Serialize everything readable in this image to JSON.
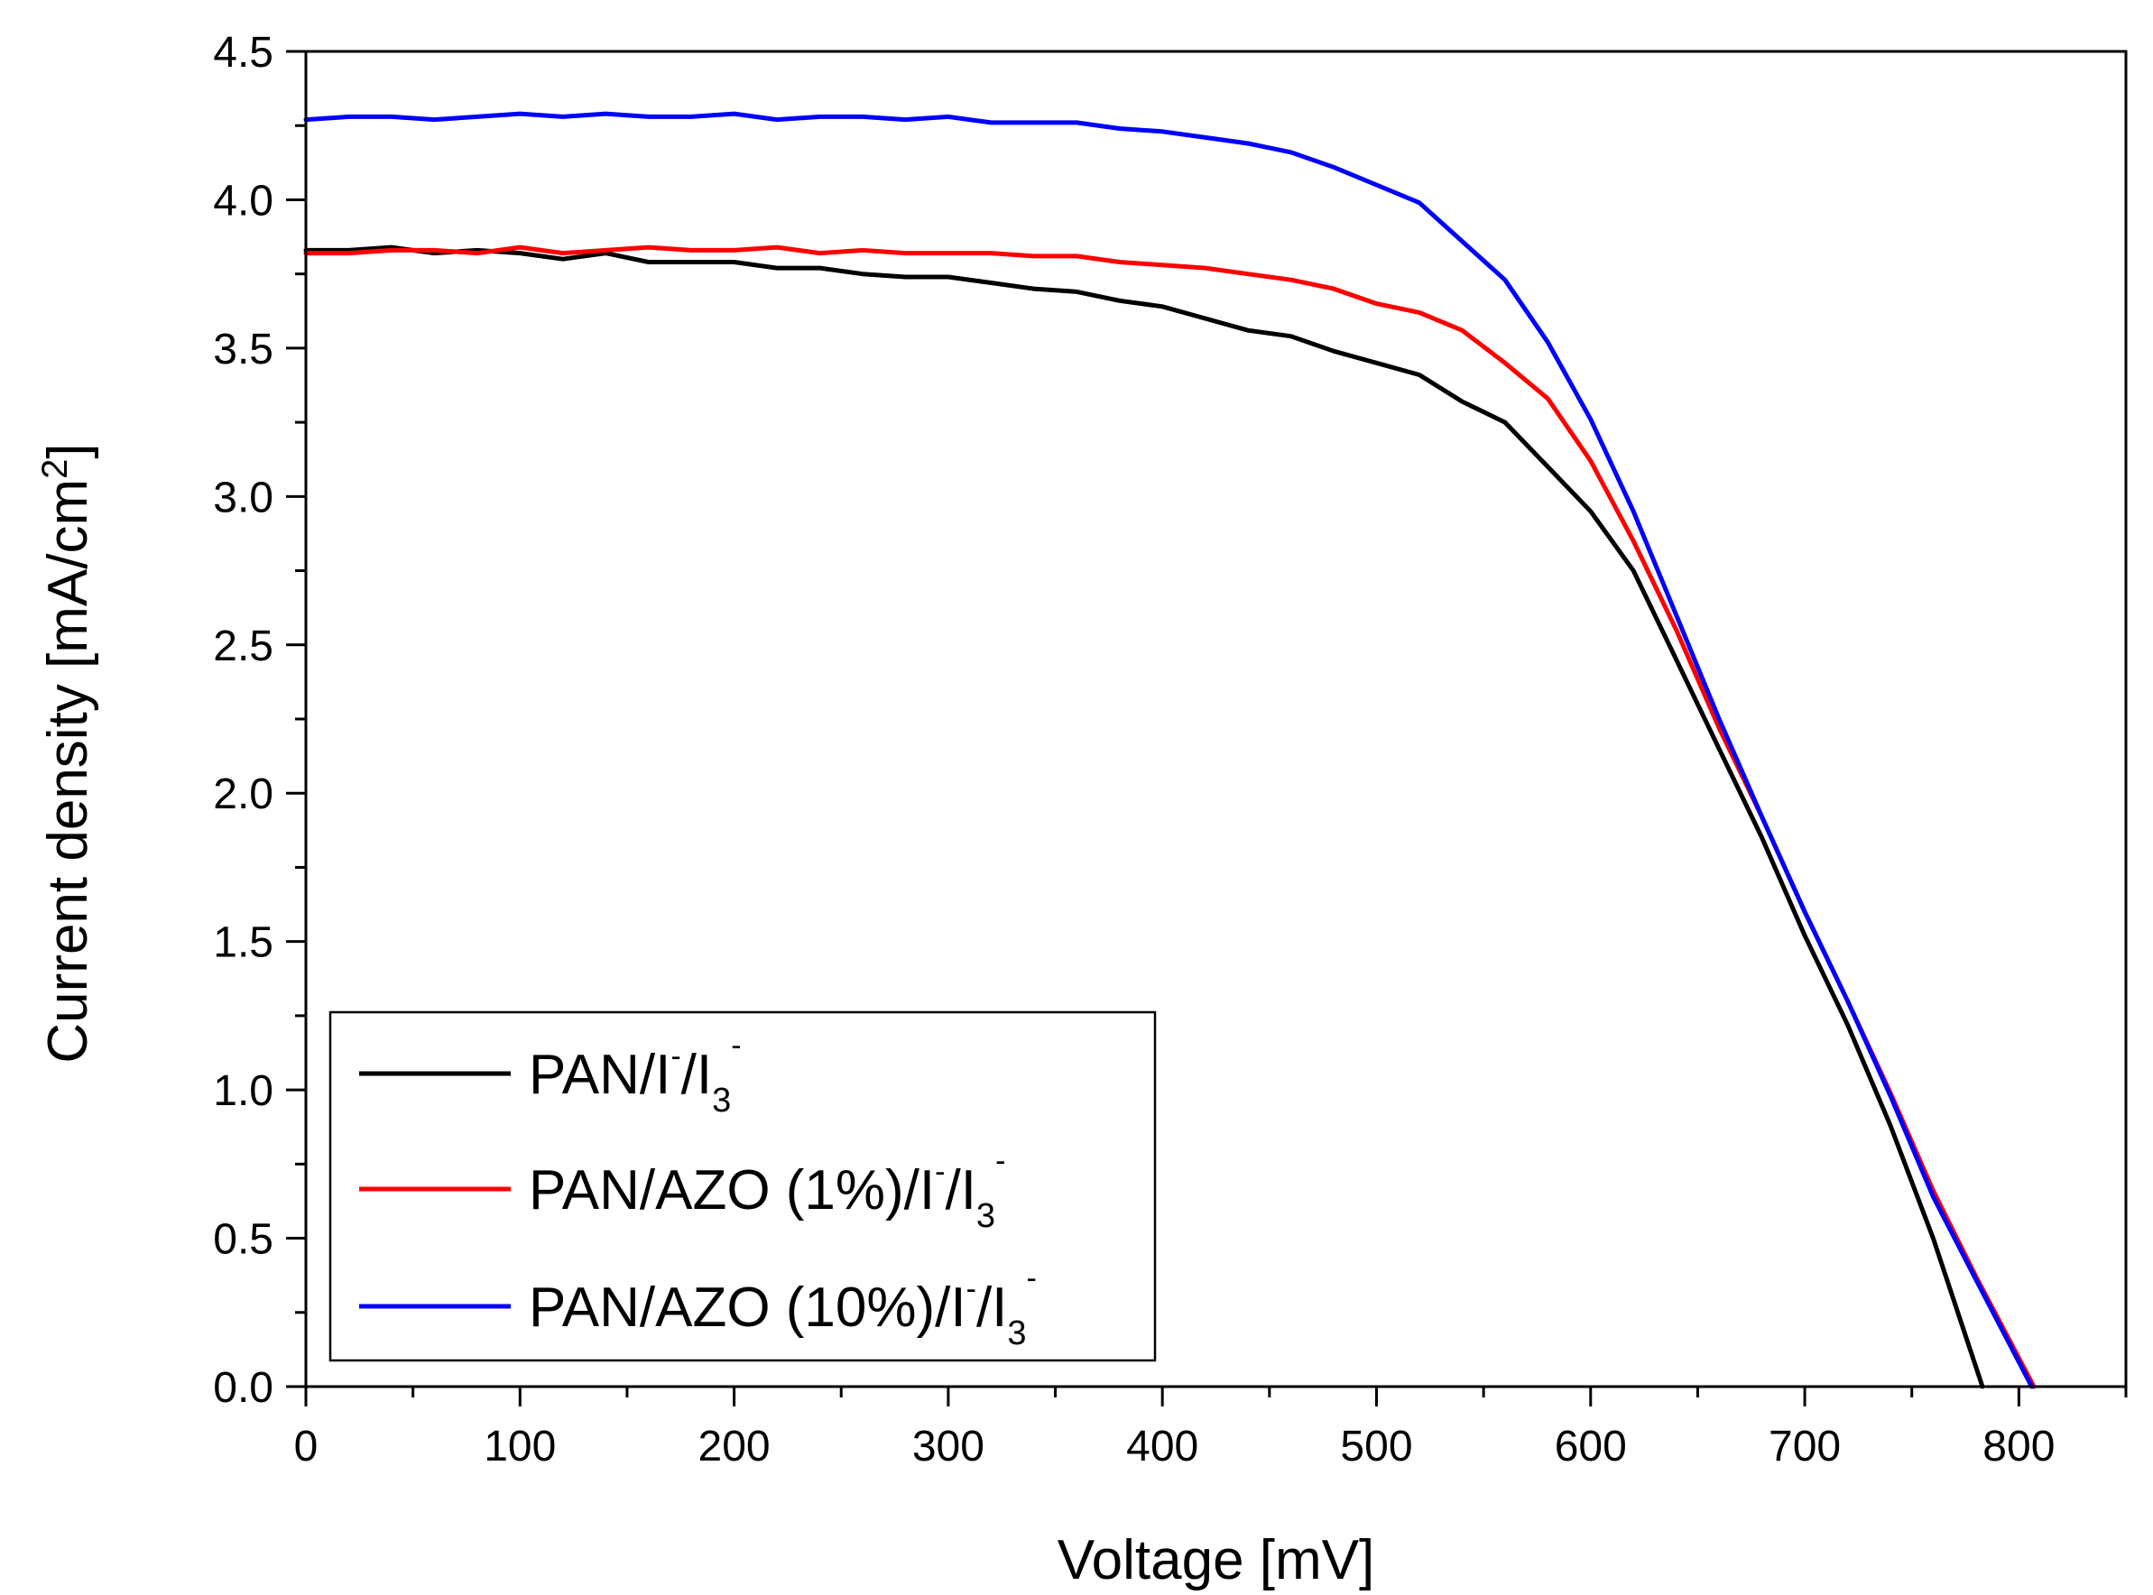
{
  "chart_data": {
    "type": "line",
    "xlabel": "Voltage [mV]",
    "ylabel": "Current density [mA/cm",
    "ylabel_sup": "2",
    "ylabel_tail": "]",
    "xlim": [
      0,
      850
    ],
    "ylim": [
      0,
      4.5
    ],
    "x_ticks": [
      0,
      100,
      200,
      300,
      400,
      500,
      600,
      700,
      800
    ],
    "x_tick_labels": [
      "0",
      "100",
      "200",
      "300",
      "400",
      "500",
      "600",
      "700",
      "800"
    ],
    "y_ticks": [
      0,
      0.5,
      1,
      1.5,
      2,
      2.5,
      3,
      3.5,
      4,
      4.5
    ],
    "y_tick_labels": [
      "0.0",
      "0.5",
      "1.0",
      "1.5",
      "2.0",
      "2.5",
      "3.0",
      "3.5",
      "4.0",
      "4.5"
    ],
    "grid": false,
    "legend_position": "bottom-left",
    "series": [
      {
        "name": "PAN/I⁻/I₃⁻",
        "legend": {
          "main": "PAN/I",
          "sup1": "-",
          "mid": "/I",
          "sub": "3",
          "sup2": "-"
        },
        "color": "#000000",
        "x": [
          0,
          20,
          40,
          60,
          80,
          100,
          120,
          140,
          160,
          180,
          200,
          220,
          240,
          260,
          280,
          300,
          320,
          340,
          360,
          380,
          400,
          420,
          440,
          460,
          480,
          500,
          520,
          540,
          560,
          580,
          600,
          620,
          640,
          660,
          680,
          700,
          720,
          740,
          760,
          783
        ],
        "y": [
          3.83,
          3.83,
          3.84,
          3.82,
          3.83,
          3.82,
          3.8,
          3.82,
          3.79,
          3.79,
          3.79,
          3.77,
          3.77,
          3.75,
          3.74,
          3.74,
          3.72,
          3.7,
          3.69,
          3.66,
          3.64,
          3.6,
          3.56,
          3.54,
          3.49,
          3.45,
          3.41,
          3.32,
          3.25,
          3.1,
          2.95,
          2.75,
          2.45,
          2.15,
          1.85,
          1.52,
          1.22,
          0.88,
          0.5,
          0.0
        ]
      },
      {
        "name": "PAN/AZO (1%)/I⁻/I₃⁻",
        "legend": {
          "main": "PAN/AZO (1%)/I",
          "sup1": "-",
          "mid": "/I",
          "sub": "3",
          "sup2": "-"
        },
        "color": "#ff0000",
        "x": [
          0,
          20,
          40,
          60,
          80,
          100,
          120,
          140,
          160,
          180,
          200,
          220,
          240,
          260,
          280,
          300,
          320,
          340,
          360,
          380,
          400,
          420,
          440,
          460,
          480,
          500,
          520,
          540,
          560,
          580,
          600,
          620,
          640,
          660,
          680,
          700,
          720,
          740,
          760,
          780,
          807
        ],
        "y": [
          3.82,
          3.82,
          3.83,
          3.83,
          3.82,
          3.84,
          3.82,
          3.83,
          3.84,
          3.83,
          3.83,
          3.84,
          3.82,
          3.83,
          3.82,
          3.82,
          3.82,
          3.81,
          3.81,
          3.79,
          3.78,
          3.77,
          3.75,
          3.73,
          3.7,
          3.65,
          3.62,
          3.56,
          3.45,
          3.33,
          3.12,
          2.85,
          2.55,
          2.22,
          1.92,
          1.6,
          1.3,
          0.99,
          0.66,
          0.37,
          0.0
        ]
      },
      {
        "name": "PAN/AZO (10%)/I⁻/I₃⁻",
        "legend": {
          "main": "PAN/AZO (10%)/I",
          "sup1": "-",
          "mid": "/I",
          "sub": "3",
          "sup2": "-"
        },
        "color": "#0000ff",
        "x": [
          0,
          20,
          40,
          60,
          80,
          100,
          120,
          140,
          160,
          180,
          200,
          220,
          240,
          260,
          280,
          300,
          320,
          340,
          360,
          380,
          400,
          420,
          440,
          460,
          480,
          500,
          520,
          540,
          560,
          580,
          600,
          620,
          640,
          660,
          680,
          700,
          720,
          740,
          760,
          780,
          806
        ],
        "y": [
          4.27,
          4.28,
          4.28,
          4.27,
          4.28,
          4.29,
          4.28,
          4.29,
          4.28,
          4.28,
          4.29,
          4.27,
          4.28,
          4.28,
          4.27,
          4.28,
          4.26,
          4.26,
          4.26,
          4.24,
          4.23,
          4.21,
          4.19,
          4.16,
          4.11,
          4.05,
          3.99,
          3.86,
          3.73,
          3.52,
          3.26,
          2.95,
          2.6,
          2.25,
          1.92,
          1.6,
          1.3,
          0.98,
          0.64,
          0.36,
          0.0
        ]
      }
    ]
  }
}
